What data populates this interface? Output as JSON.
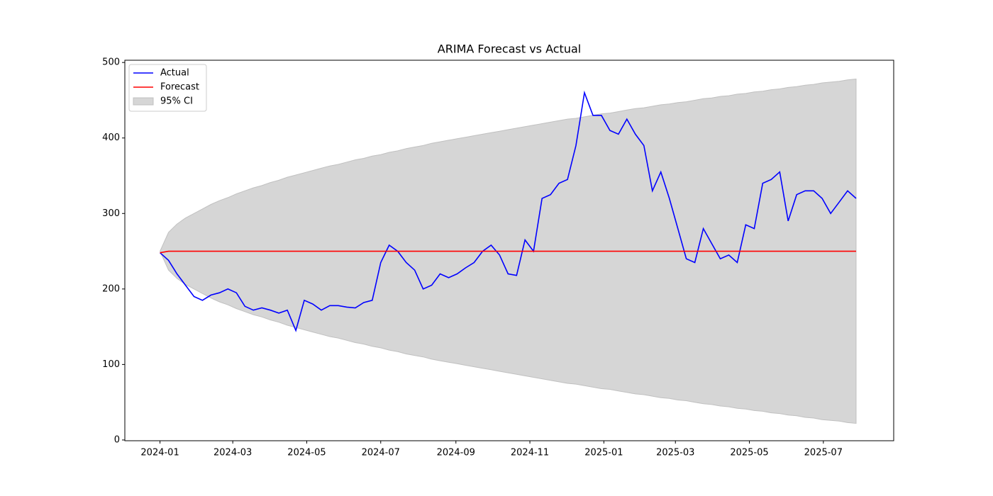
{
  "chart_data": {
    "type": "line",
    "title": "ARIMA Forecast vs Actual",
    "x": [
      "2024-01-01",
      "2024-01-08",
      "2024-01-15",
      "2024-01-22",
      "2024-01-29",
      "2024-02-05",
      "2024-02-12",
      "2024-02-19",
      "2024-02-26",
      "2024-03-04",
      "2024-03-11",
      "2024-03-18",
      "2024-03-25",
      "2024-04-01",
      "2024-04-08",
      "2024-04-15",
      "2024-04-22",
      "2024-04-29",
      "2024-05-06",
      "2024-05-13",
      "2024-05-20",
      "2024-05-27",
      "2024-06-03",
      "2024-06-10",
      "2024-06-17",
      "2024-06-24",
      "2024-07-01",
      "2024-07-08",
      "2024-07-15",
      "2024-07-22",
      "2024-07-29",
      "2024-08-05",
      "2024-08-12",
      "2024-08-19",
      "2024-08-26",
      "2024-09-02",
      "2024-09-09",
      "2024-09-16",
      "2024-09-23",
      "2024-09-30",
      "2024-10-07",
      "2024-10-14",
      "2024-10-21",
      "2024-10-28",
      "2024-11-04",
      "2024-11-11",
      "2024-11-18",
      "2024-11-25",
      "2024-12-02",
      "2024-12-09",
      "2024-12-16",
      "2024-12-23",
      "2024-12-30",
      "2025-01-06",
      "2025-01-13",
      "2025-01-20",
      "2025-01-27",
      "2025-02-03",
      "2025-02-10",
      "2025-02-17",
      "2025-02-24",
      "2025-03-03",
      "2025-03-10",
      "2025-03-17",
      "2025-03-24",
      "2025-03-31",
      "2025-04-07",
      "2025-04-14",
      "2025-04-21",
      "2025-04-28",
      "2025-05-05",
      "2025-05-12",
      "2025-05-19",
      "2025-05-26",
      "2025-06-02",
      "2025-06-09",
      "2025-06-16",
      "2025-06-23",
      "2025-06-30",
      "2025-07-07",
      "2025-07-14",
      "2025-07-21",
      "2025-07-28"
    ],
    "series": [
      {
        "name": "Actual",
        "color": "#0000ff",
        "values": [
          248,
          238,
          220,
          205,
          190,
          185,
          192,
          195,
          200,
          195,
          177,
          172,
          175,
          172,
          168,
          172,
          145,
          185,
          180,
          172,
          178,
          178,
          176,
          175,
          182,
          185,
          235,
          258,
          250,
          235,
          225,
          200,
          205,
          220,
          215,
          220,
          228,
          235,
          250,
          258,
          245,
          220,
          218,
          265,
          250,
          320,
          325,
          340,
          345,
          390,
          460,
          430,
          430,
          410,
          405,
          425,
          405,
          390,
          330,
          355,
          320,
          280,
          240,
          235,
          280,
          260,
          240,
          245,
          235,
          285,
          280,
          340,
          345,
          355,
          290,
          325,
          330,
          330,
          320,
          300,
          315,
          330,
          320
        ]
      },
      {
        "name": "Forecast",
        "color": "#ff0000",
        "values": [
          248,
          250,
          250,
          250,
          250,
          250,
          250,
          250,
          250,
          250,
          250,
          250,
          250,
          250,
          250,
          250,
          250,
          250,
          250,
          250,
          250,
          250,
          250,
          250,
          250,
          250,
          250,
          250,
          250,
          250,
          250,
          250,
          250,
          250,
          250,
          250,
          250,
          250,
          250,
          250,
          250,
          250,
          250,
          250,
          250,
          250,
          250,
          250,
          250,
          250,
          250,
          250,
          250,
          250,
          250,
          250,
          250,
          250,
          250,
          250,
          250,
          250,
          250,
          250,
          250,
          250,
          250,
          250,
          250,
          250,
          250,
          250,
          250,
          250,
          250,
          250,
          250,
          250,
          250,
          250,
          250,
          250,
          250
        ]
      }
    ],
    "band": {
      "name": "95% CI",
      "color": "#d6d6d6",
      "upper": [
        250,
        275,
        286,
        294,
        300,
        306,
        312,
        317,
        321,
        326,
        330,
        334,
        337,
        341,
        344,
        348,
        351,
        354,
        357,
        360,
        363,
        365,
        368,
        371,
        373,
        376,
        378,
        381,
        383,
        386,
        388,
        390,
        393,
        395,
        397,
        399,
        401,
        403,
        405,
        407,
        409,
        411,
        413,
        415,
        417,
        419,
        421,
        423,
        425,
        426,
        428,
        430,
        432,
        433,
        435,
        437,
        439,
        440,
        442,
        444,
        445,
        447,
        448,
        450,
        452,
        453,
        455,
        456,
        458,
        459,
        461,
        462,
        464,
        465,
        467,
        468,
        470,
        471,
        473,
        474,
        475,
        477,
        478
      ],
      "lower": [
        250,
        225,
        214,
        206,
        200,
        194,
        188,
        183,
        179,
        174,
        170,
        166,
        163,
        159,
        156,
        152,
        149,
        146,
        143,
        140,
        137,
        135,
        132,
        129,
        127,
        124,
        122,
        119,
        117,
        114,
        112,
        110,
        107,
        105,
        103,
        101,
        99,
        97,
        95,
        93,
        91,
        89,
        87,
        85,
        83,
        81,
        79,
        77,
        75,
        74,
        72,
        70,
        68,
        67,
        65,
        63,
        61,
        60,
        58,
        56,
        55,
        53,
        52,
        50,
        48,
        47,
        45,
        44,
        42,
        41,
        39,
        38,
        36,
        35,
        33,
        32,
        30,
        29,
        27,
        26,
        25,
        23,
        22
      ]
    },
    "xlim": [
      "2023-12-03",
      "2025-08-28"
    ],
    "xticks": [
      {
        "value": "2024-01-01",
        "label": "2024-01"
      },
      {
        "value": "2024-03-01",
        "label": "2024-03"
      },
      {
        "value": "2024-05-01",
        "label": "2024-05"
      },
      {
        "value": "2024-07-01",
        "label": "2024-07"
      },
      {
        "value": "2024-09-01",
        "label": "2024-09"
      },
      {
        "value": "2024-11-01",
        "label": "2024-11"
      },
      {
        "value": "2025-01-01",
        "label": "2025-01"
      },
      {
        "value": "2025-03-01",
        "label": "2025-03"
      },
      {
        "value": "2025-05-01",
        "label": "2025-05"
      },
      {
        "value": "2025-07-01",
        "label": "2025-07"
      }
    ],
    "ylim": [
      -1,
      503
    ],
    "yticks": [
      0,
      100,
      200,
      300,
      400,
      500
    ],
    "legend": "upper left"
  }
}
